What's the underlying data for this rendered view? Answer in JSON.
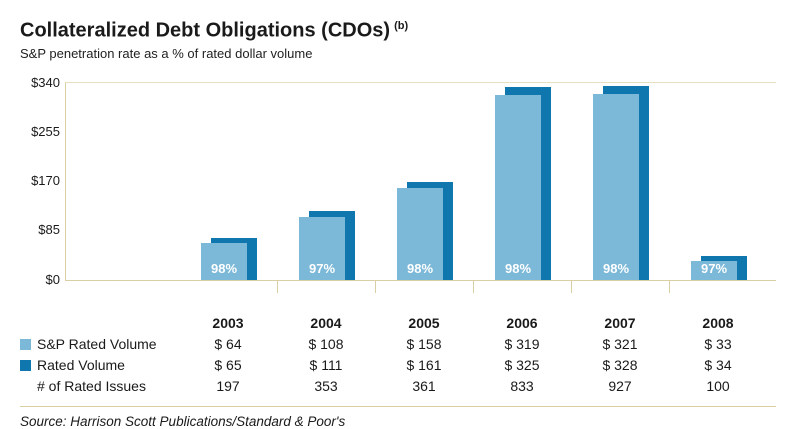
{
  "title": "Collateralized Debt Obligations (CDOs)",
  "superscript": "(b)",
  "subtitle": "S&P penetration rate as a % of rated dollar volume",
  "source": "Source: Harrison Scott Publications/Standard & Poor's",
  "colors": {
    "sp_rated_volume": "#7cb8d7",
    "rated_volume": "#0f77ae",
    "axis": "#d9cfa2",
    "percent_text": "#ffffff"
  },
  "chart_data": {
    "type": "bar",
    "title": "Collateralized Debt Obligations (CDOs) (b)",
    "subtitle": "S&P penetration rate as a % of rated dollar volume",
    "categories": [
      "2003",
      "2004",
      "2005",
      "2006",
      "2007",
      "2008"
    ],
    "series": [
      {
        "name": "S&P Rated Volume",
        "values": [
          64,
          108,
          158,
          319,
          321,
          33
        ]
      },
      {
        "name": "Rated Volume",
        "values": [
          65,
          111,
          161,
          325,
          328,
          34
        ]
      }
    ],
    "percent_labels": [
      "98%",
      "97%",
      "98%",
      "98%",
      "98%",
      "97%"
    ],
    "y_ticks": [
      "$340",
      "$255",
      "$170",
      "$85",
      "$0"
    ],
    "ylim": [
      0,
      340
    ],
    "grid": false,
    "legend_position": "table-left"
  },
  "table": {
    "header": [
      "2003",
      "2004",
      "2005",
      "2006",
      "2007",
      "2008"
    ],
    "rows": [
      {
        "label": "S&P Rated Volume",
        "swatch": "sp_rated_volume",
        "values": [
          "$ 64",
          "$ 108",
          "$ 158",
          "$ 319",
          "$ 321",
          "$ 33"
        ]
      },
      {
        "label": "Rated Volume",
        "swatch": "rated_volume",
        "values": [
          "$ 65",
          "$ 111",
          "$ 161",
          "$ 325",
          "$ 328",
          "$ 34"
        ]
      },
      {
        "label": "# of Rated Issues",
        "swatch": null,
        "values": [
          "197",
          "353",
          "361",
          "833",
          "927",
          "100"
        ]
      }
    ]
  }
}
